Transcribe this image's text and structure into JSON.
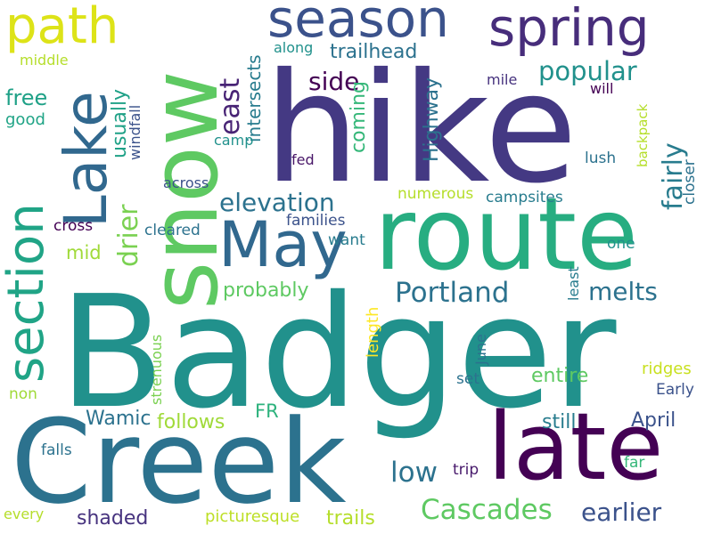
{
  "words": [
    {
      "id": "badger",
      "text": "Badger",
      "color": "#21918c"
    },
    {
      "id": "hike",
      "text": "hike",
      "color": "#443983"
    },
    {
      "id": "creek",
      "text": "Creek",
      "color": "#2c728e"
    },
    {
      "id": "route",
      "text": "route",
      "color": "#27ad81"
    },
    {
      "id": "late",
      "text": "late",
      "color": "#440154"
    },
    {
      "id": "snow",
      "text": "snow",
      "color": "#5ec962"
    },
    {
      "id": "lake",
      "text": "Lake",
      "color": "#31688e"
    },
    {
      "id": "may",
      "text": "May",
      "color": "#31688e"
    },
    {
      "id": "section",
      "text": "section",
      "color": "#20a486"
    },
    {
      "id": "path",
      "text": "path",
      "color": "#dde318"
    },
    {
      "id": "season",
      "text": "season",
      "color": "#3b528b"
    },
    {
      "id": "spring",
      "text": "spring",
      "color": "#472d7b"
    },
    {
      "id": "portland",
      "text": "Portland",
      "color": "#2c728e"
    },
    {
      "id": "cascades",
      "text": "Cascades",
      "color": "#5ec962"
    },
    {
      "id": "earlier",
      "text": "earlier",
      "color": "#3b528b"
    },
    {
      "id": "popular",
      "text": "popular",
      "color": "#21918c"
    },
    {
      "id": "melts",
      "text": "melts",
      "color": "#2c728e"
    },
    {
      "id": "elevation",
      "text": "elevation",
      "color": "#2c728e"
    },
    {
      "id": "low",
      "text": "low",
      "color": "#2c728e"
    },
    {
      "id": "side",
      "text": "side",
      "color": "#440154"
    },
    {
      "id": "fairly",
      "text": "fairly",
      "color": "#287c8e"
    },
    {
      "id": "drier",
      "text": "drier",
      "color": "#7ad151"
    },
    {
      "id": "east",
      "text": "east",
      "color": "#482475"
    },
    {
      "id": "usually",
      "text": "usually",
      "color": "#1fa187"
    },
    {
      "id": "trailhead",
      "text": "trailhead",
      "color": "#2c728e"
    },
    {
      "id": "intersects",
      "text": "intersects",
      "color": "#287c8e"
    },
    {
      "id": "highway",
      "text": "Highway",
      "color": "#2c728e"
    },
    {
      "id": "coming",
      "text": "coming",
      "color": "#35b779"
    },
    {
      "id": "windfall",
      "text": "windfall",
      "color": "#3b528b"
    },
    {
      "id": "free",
      "text": "free",
      "color": "#1fa187"
    },
    {
      "id": "good",
      "text": "good",
      "color": "#20a486"
    },
    {
      "id": "middle",
      "text": "middle",
      "color": "#b5de2b"
    },
    {
      "id": "along",
      "text": "along",
      "color": "#21918c"
    },
    {
      "id": "mile",
      "text": "mile",
      "color": "#46327e"
    },
    {
      "id": "will",
      "text": "will",
      "color": "#440154"
    },
    {
      "id": "backpack",
      "text": "backpack",
      "color": "#b5de2b"
    },
    {
      "id": "camp",
      "text": "camp",
      "color": "#21918c"
    },
    {
      "id": "fed",
      "text": "fed",
      "color": "#481668"
    },
    {
      "id": "lush",
      "text": "lush",
      "color": "#2c728e"
    },
    {
      "id": "closer",
      "text": "closer",
      "color": "#2c728e"
    },
    {
      "id": "across",
      "text": "across",
      "color": "#3b528b"
    },
    {
      "id": "numerous",
      "text": "numerous",
      "color": "#b5de2b"
    },
    {
      "id": "campsites",
      "text": "campsites",
      "color": "#287c8e"
    },
    {
      "id": "families",
      "text": "families",
      "color": "#3b528b"
    },
    {
      "id": "cross",
      "text": "cross",
      "color": "#440154"
    },
    {
      "id": "cleared",
      "text": "cleared",
      "color": "#2c728e"
    },
    {
      "id": "mid",
      "text": "mid",
      "color": "#a0da39"
    },
    {
      "id": "want",
      "text": "want",
      "color": "#287c8e"
    },
    {
      "id": "one",
      "text": "one",
      "color": "#21918c"
    },
    {
      "id": "probably",
      "text": "probably",
      "color": "#5ec962"
    },
    {
      "id": "length",
      "text": "length",
      "color": "#fde725"
    },
    {
      "id": "least",
      "text": "least",
      "color": "#287c8e"
    },
    {
      "id": "june",
      "text": "June",
      "color": "#2c728e"
    },
    {
      "id": "strenuous",
      "text": "strenuous",
      "color": "#7ad151"
    },
    {
      "id": "set",
      "text": "set",
      "color": "#2c728e"
    },
    {
      "id": "entire",
      "text": "entire",
      "color": "#5ec962"
    },
    {
      "id": "ridges",
      "text": "ridges",
      "color": "#c8e020"
    },
    {
      "id": "early",
      "text": "Early",
      "color": "#3b528b"
    },
    {
      "id": "non",
      "text": "non",
      "color": "#a0da39"
    },
    {
      "id": "wamic",
      "text": "Wamic",
      "color": "#2c728e"
    },
    {
      "id": "follows",
      "text": "follows",
      "color": "#a0da39"
    },
    {
      "id": "fr",
      "text": "FR",
      "color": "#2db27d"
    },
    {
      "id": "still",
      "text": "still",
      "color": "#287c8e"
    },
    {
      "id": "april",
      "text": "April",
      "color": "#3b528b"
    },
    {
      "id": "falls",
      "text": "falls",
      "color": "#2c728e"
    },
    {
      "id": "trip",
      "text": "trip",
      "color": "#481a6c"
    },
    {
      "id": "far",
      "text": "far",
      "color": "#35b779"
    },
    {
      "id": "shaded",
      "text": "shaded",
      "color": "#46327e"
    },
    {
      "id": "every",
      "text": "every",
      "color": "#b5de2b"
    },
    {
      "id": "picturesque",
      "text": "picturesque",
      "color": "#bddf26"
    },
    {
      "id": "trails",
      "text": "trails",
      "color": "#b5de2b"
    }
  ]
}
